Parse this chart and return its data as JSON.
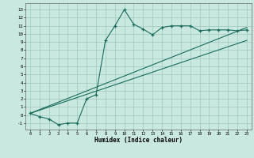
{
  "xlabel": "Humidex (Indice chaleur)",
  "background_color": "#c8e8e0",
  "grid_color": "#a0c8c0",
  "line_color": "#1a6b5a",
  "xlim": [
    -0.5,
    23.5
  ],
  "ylim": [
    -1.8,
    13.8
  ],
  "xticks": [
    0,
    1,
    2,
    3,
    4,
    5,
    6,
    7,
    8,
    9,
    10,
    11,
    12,
    13,
    14,
    15,
    16,
    17,
    18,
    19,
    20,
    21,
    22,
    23
  ],
  "yticks": [
    -1,
    0,
    1,
    2,
    3,
    4,
    5,
    6,
    7,
    8,
    9,
    10,
    11,
    12,
    13
  ],
  "curve1_x": [
    0,
    1,
    2,
    3,
    4,
    5,
    6,
    7,
    8,
    9,
    10,
    11,
    12,
    13,
    14,
    15,
    16,
    17,
    18,
    19,
    20,
    21,
    22,
    23
  ],
  "curve1_y": [
    0.2,
    -0.2,
    -0.5,
    -1.2,
    -1.0,
    -1.0,
    2.0,
    2.5,
    9.2,
    11.0,
    13.0,
    11.2,
    10.6,
    9.9,
    10.8,
    11.0,
    11.0,
    11.0,
    10.4,
    10.5,
    10.5,
    10.5,
    10.4,
    10.5
  ],
  "line2_x": [
    0,
    23
  ],
  "line2_y": [
    0.2,
    10.8
  ],
  "line3_x": [
    0,
    23
  ],
  "line3_y": [
    0.2,
    9.2
  ]
}
